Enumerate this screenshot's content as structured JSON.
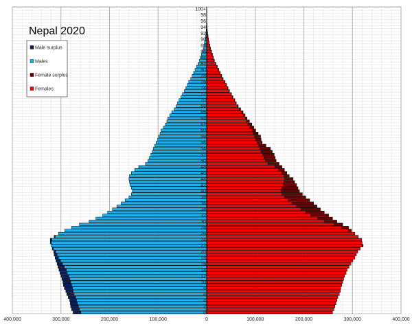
{
  "chart_data": {
    "type": "bar",
    "subtype": "population-pyramid",
    "title": "Nepal 2020",
    "units": "thousands of people",
    "xlim": [
      -400000,
      400000
    ],
    "x_ticks": [
      -400000,
      -300000,
      -200000,
      -100000,
      0,
      100000,
      200000,
      300000,
      400000
    ],
    "x_tick_labels": [
      "400,000",
      "300,000",
      "200,000",
      "100,000",
      "0",
      "100,000",
      "200,000",
      "300,000",
      "400,000"
    ],
    "age_tick_labels": [
      "0",
      "2",
      "4",
      "6",
      "8",
      "10",
      "12",
      "14",
      "16",
      "18",
      "20",
      "22",
      "24",
      "26",
      "28",
      "30",
      "32",
      "34",
      "36",
      "38",
      "40",
      "42",
      "44",
      "46",
      "48",
      "50",
      "52",
      "54",
      "56",
      "58",
      "60",
      "62",
      "64",
      "66",
      "68",
      "70",
      "72",
      "74",
      "76",
      "78",
      "80",
      "82",
      "84",
      "86",
      "88",
      "90",
      "92",
      "94",
      "96",
      "98",
      "100+"
    ],
    "grid": true,
    "legend_position": "top-left",
    "legend": [
      {
        "label": "Male surplus",
        "color": "#0b1f5e"
      },
      {
        "label": "Males",
        "color": "#1fb0ec"
      },
      {
        "label": "Female surplus",
        "color": "#6a0000"
      },
      {
        "label": "Females",
        "color": "#ff0000"
      }
    ],
    "ages": "0..100+",
    "males": [
      275,
      278,
      280,
      281,
      282,
      285,
      288,
      290,
      293,
      295,
      296,
      298,
      300,
      302,
      304,
      306,
      308,
      310,
      312,
      314,
      315,
      318,
      320,
      322,
      322,
      314,
      305,
      292,
      278,
      262,
      242,
      228,
      214,
      204,
      194,
      185,
      176,
      168,
      160,
      155,
      153,
      155,
      158,
      159,
      160,
      159,
      155,
      148,
      140,
      126,
      121,
      118,
      115,
      112,
      110,
      107,
      104,
      101,
      99,
      96,
      94,
      89,
      85,
      82,
      80,
      76,
      72,
      67,
      63,
      60,
      57,
      53,
      50,
      46,
      43,
      40,
      37,
      33,
      30,
      27,
      24,
      21,
      18,
      15,
      13,
      11,
      9,
      7,
      6,
      4.5,
      3.5,
      2.5,
      1.5,
      1,
      0.7,
      0.5,
      0.3,
      0.2,
      0.1,
      0.1,
      0.1
    ],
    "females": [
      259,
      262,
      264,
      266,
      268,
      270,
      273,
      275,
      276,
      278,
      280,
      282,
      284,
      287,
      289,
      293,
      297,
      301,
      305,
      308,
      311,
      316,
      322,
      320,
      319,
      312,
      305,
      298,
      292,
      280,
      268,
      259,
      251,
      242,
      234,
      227,
      220,
      212,
      204,
      197,
      191,
      188,
      185,
      181,
      178,
      170,
      165,
      160,
      155,
      149,
      143,
      141,
      139,
      135,
      131,
      122,
      114,
      112,
      111,
      106,
      101,
      97,
      93,
      88,
      83,
      79,
      75,
      70,
      65,
      61,
      58,
      54,
      51,
      47,
      44,
      41,
      38,
      34,
      31,
      28,
      25,
      22,
      19,
      16,
      14,
      12,
      10,
      8,
      6.5,
      5,
      4,
      3,
      2,
      1.3,
      0.9,
      0.6,
      0.4,
      0.3,
      0.2,
      0.1,
      0.2
    ]
  }
}
